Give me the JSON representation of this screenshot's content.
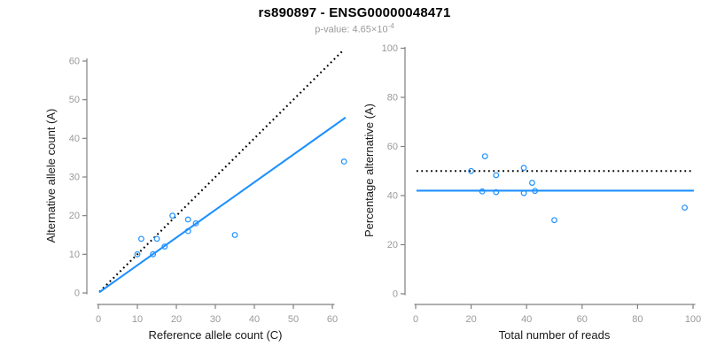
{
  "chart_data": {
    "title": "rs890897 - ENSG00000048471",
    "subtitle_base": "p-value: 4.65×10",
    "subtitle_exponent": "-4",
    "colors": {
      "accent_blue": "#1E90FF",
      "line_black": "#000000",
      "axis_gray": "#808080",
      "tick_text_gray": "#9a9a9a",
      "label_black": "#1a1a1a"
    },
    "panels": [
      {
        "type": "scatter",
        "xlabel": "Reference allele count (C)",
        "ylabel": "Alternative allele count (A)",
        "xticks": [
          0,
          10,
          20,
          30,
          40,
          50,
          60
        ],
        "yticks": [
          0,
          10,
          20,
          30,
          40,
          50,
          60
        ],
        "xlim": [
          0,
          63.6
        ],
        "ylim": [
          0,
          63.5
        ],
        "grid": false,
        "legend": "none",
        "points": [
          [
            10,
            10
          ],
          [
            11,
            14
          ],
          [
            14,
            10
          ],
          [
            15,
            14
          ],
          [
            17,
            12
          ],
          [
            19,
            20
          ],
          [
            23,
            16
          ],
          [
            23,
            19
          ],
          [
            25,
            18
          ],
          [
            35,
            15
          ],
          [
            63,
            34
          ]
        ],
        "lines": [
          {
            "name": "identity-line",
            "x1": 0.3,
            "y1": 0.3,
            "x2": 62.8,
            "y2": 62.8,
            "dashed": true,
            "color": "#000000"
          },
          {
            "name": "fit-line",
            "x1": 0.2,
            "y1": 0.15,
            "x2": 63.4,
            "y2": 45.4,
            "dashed": false,
            "color": "#1E90FF"
          }
        ]
      },
      {
        "type": "scatter",
        "xlabel": "Total number of reads",
        "ylabel": "Percentage alternative (A)",
        "xticks": [
          0,
          20,
          40,
          60,
          80,
          100
        ],
        "yticks": [
          0,
          20,
          40,
          60,
          80,
          100
        ],
        "xlim": [
          0,
          100.6
        ],
        "ylim": [
          0,
          100.5
        ],
        "grid": false,
        "legend": "none",
        "points": [
          [
            20,
            50
          ],
          [
            24,
            41.7
          ],
          [
            25,
            56
          ],
          [
            29,
            41.4
          ],
          [
            29,
            48.3
          ],
          [
            39,
            41
          ],
          [
            39,
            51.3
          ],
          [
            42,
            45.2
          ],
          [
            43,
            41.9
          ],
          [
            50,
            30
          ],
          [
            97,
            35.1
          ]
        ],
        "lines": [
          {
            "name": "fifty-percent-line",
            "x1": 0.3,
            "y1": 50,
            "x2": 100.3,
            "y2": 50,
            "dashed": true,
            "color": "#000000"
          },
          {
            "name": "mean-percentage-line",
            "x1": 0.3,
            "y1": 42,
            "x2": 100.3,
            "y2": 42,
            "dashed": false,
            "color": "#1E90FF"
          }
        ]
      }
    ]
  }
}
